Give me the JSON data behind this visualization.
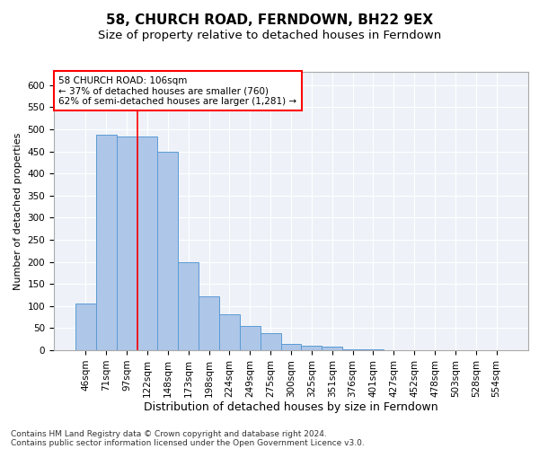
{
  "title1": "58, CHURCH ROAD, FERNDOWN, BH22 9EX",
  "title2": "Size of property relative to detached houses in Ferndown",
  "xlabel": "Distribution of detached houses by size in Ferndown",
  "ylabel": "Number of detached properties",
  "categories": [
    "46sqm",
    "71sqm",
    "97sqm",
    "122sqm",
    "148sqm",
    "173sqm",
    "198sqm",
    "224sqm",
    "249sqm",
    "275sqm",
    "300sqm",
    "325sqm",
    "351sqm",
    "376sqm",
    "401sqm",
    "427sqm",
    "452sqm",
    "478sqm",
    "503sqm",
    "528sqm",
    "554sqm"
  ],
  "values": [
    105,
    487,
    483,
    483,
    450,
    200,
    122,
    82,
    55,
    38,
    15,
    10,
    8,
    3,
    2,
    1,
    1,
    0,
    0,
    0,
    0
  ],
  "bar_color": "#aec6e8",
  "bar_edge_color": "#5b9bd5",
  "vline_x": 2.5,
  "vline_color": "red",
  "annotation_text": "58 CHURCH ROAD: 106sqm\n← 37% of detached houses are smaller (760)\n62% of semi-detached houses are larger (1,281) →",
  "annotation_box_color": "white",
  "annotation_box_edge_color": "red",
  "ylim": [
    0,
    630
  ],
  "yticks": [
    0,
    50,
    100,
    150,
    200,
    250,
    300,
    350,
    400,
    450,
    500,
    550,
    600
  ],
  "footer1": "Contains HM Land Registry data © Crown copyright and database right 2024.",
  "footer2": "Contains public sector information licensed under the Open Government Licence v3.0.",
  "plot_bg_color": "#eef2f8",
  "title1_fontsize": 11,
  "title2_fontsize": 9.5,
  "xlabel_fontsize": 9,
  "ylabel_fontsize": 8,
  "tick_fontsize": 7.5,
  "annotation_fontsize": 7.5,
  "footer_fontsize": 6.5
}
